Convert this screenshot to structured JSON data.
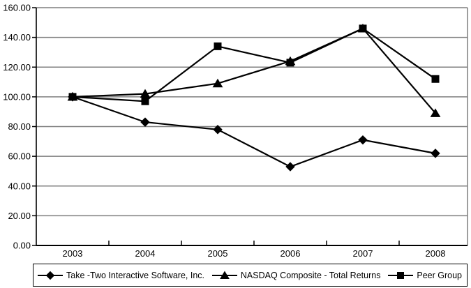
{
  "chart_data": {
    "type": "line",
    "title": "",
    "categories": [
      "2003",
      "2004",
      "2005",
      "2006",
      "2007",
      "2008"
    ],
    "series": [
      {
        "name": "Take -Two Interactive Software, Inc.",
        "marker": "diamond",
        "color": "#000000",
        "values": [
          100,
          83,
          78,
          53,
          71,
          62
        ]
      },
      {
        "name": "NASDAQ Composite - Total Returns",
        "marker": "triangle",
        "color": "#000000",
        "values": [
          100,
          102,
          109,
          124,
          146,
          89
        ]
      },
      {
        "name": "Peer Group",
        "marker": "square",
        "color": "#000000",
        "values": [
          100,
          97,
          134,
          123,
          146,
          112
        ]
      }
    ],
    "xlabel": "",
    "ylabel": "",
    "ylim": [
      0,
      160
    ],
    "y_step": 20,
    "y_tick_labels": [
      "0.00",
      "20.00",
      "40.00",
      "60.00",
      "80.00",
      "100.00",
      "120.00",
      "140.00",
      "160.00"
    ],
    "grid": "horizontal",
    "x_ticks_between_categories": true,
    "legend_position": "bottom-boxed"
  },
  "colors": {
    "line": "#000000",
    "gridline": "#7f7f7f",
    "axis": "#000000",
    "background": "#ffffff",
    "text": "#000000"
  }
}
